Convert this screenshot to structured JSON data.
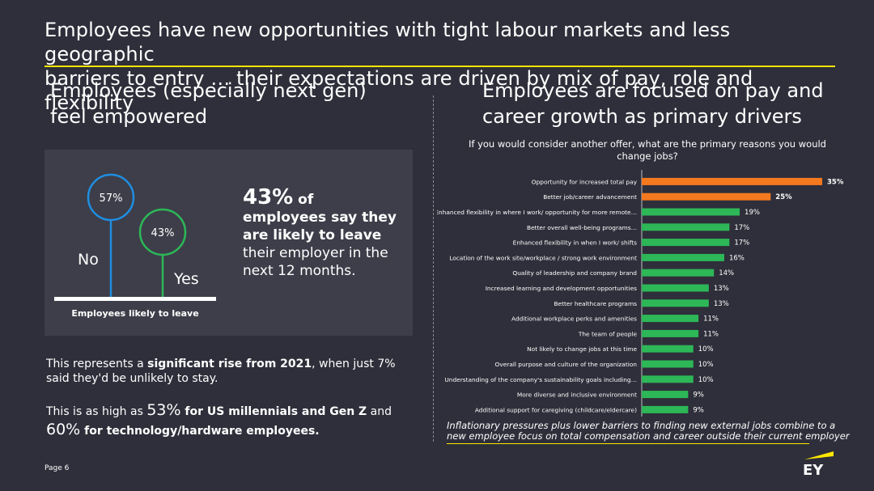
{
  "header": {
    "title_line1": "Employees have new opportunities with tight labour markets and less geographic",
    "title_line2": "barriers to entry … their expectations are driven by mix of pay, role and flexibility"
  },
  "left": {
    "heading_line1": "Employees (especially next gen)",
    "heading_line2": "feel empowered",
    "graphic": {
      "no_pct": "57%",
      "yes_pct": "43%",
      "no_label": "No",
      "yes_label": "Yes",
      "caption": "Employees likely to leave",
      "no_value": 57,
      "yes_value": 43,
      "no_color": "#1f8ee0",
      "yes_color": "#2db757"
    },
    "stat": {
      "number": "43%",
      "of": " of",
      "bold_text": "employees say they are likely to leave",
      "rest_text": " their employer in the next 12 months."
    },
    "para1": {
      "pre": "This represents a ",
      "bold": "significant rise from 2021",
      "post": ", when just 7% said they'd be unlikely to stay."
    },
    "para2": {
      "pre": "This is as high as ",
      "num1": "53%",
      "bold1": " for US millennials and Gen Z",
      "mid": " and",
      "num2": "60%",
      "bold2": " for technology/hardware employees."
    }
  },
  "right": {
    "heading_line1": "Employees are focused on pay and",
    "heading_line2": "career growth as primary drivers",
    "footnote": "Inflationary pressures plus lower barriers to finding new external jobs combine to a new employee focus on total compensation and career outside their current employer"
  },
  "chart_data": {
    "type": "bar",
    "orientation": "horizontal",
    "title": "If you would consider another offer, what are the primary reasons you would change jobs?",
    "categories": [
      "Opportunity for increased total pay",
      "Better job/career advancement",
      "Enhanced flexibility in where I work/ opportunity for more remote…",
      "Better overall well-being programs…",
      "Enhanced flexibility in when I work/ shifts",
      "Location of the work site/workplace / strong work environment",
      "Quality of leadership and company brand",
      "Increased learning and development opportunities",
      "Better healthcare programs",
      "Additional workplace perks and amenities",
      "The team of people",
      "Not likely to change jobs at this time",
      "Overall purpose and culture of the organization",
      "Understanding of the company's sustainability goals including…",
      "More diverse and inclusive environment",
      "Additional support for caregiving (childcare/eldercare)"
    ],
    "values": [
      35,
      25,
      19,
      17,
      17,
      16,
      14,
      13,
      13,
      11,
      11,
      10,
      10,
      10,
      9,
      9
    ],
    "value_labels": [
      "35%",
      "25%",
      "19%",
      "17%",
      "17%",
      "16%",
      "14%",
      "13%",
      "13%",
      "11%",
      "11%",
      "10%",
      "10%",
      "10%",
      "9%",
      "9%"
    ],
    "highlight_count": 2,
    "highlight_color": "#f5791f",
    "bar_color": "#2db757",
    "xlim": [
      0,
      35
    ]
  },
  "footer": {
    "page": "Page 6",
    "logo_text": "EY",
    "logo_color": "#ffe600"
  }
}
